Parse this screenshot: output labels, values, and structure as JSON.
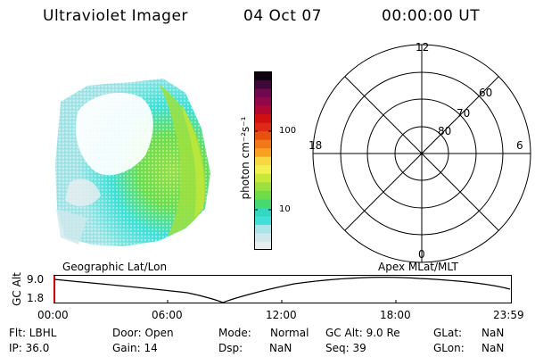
{
  "header": {
    "instrument": "Ultraviolet Imager",
    "date": "04 Oct 07",
    "time": "00:00:00 UT"
  },
  "colorbar": {
    "unit_label": "photon cm⁻²s⁻¹",
    "tick_100": "100",
    "tick_10": "10",
    "colors": [
      "#e8eef0",
      "#d0e8ec",
      "#a8e4e8",
      "#40e0d8",
      "#30d8c0",
      "#48d870",
      "#70dc48",
      "#9ce040",
      "#c8e838",
      "#f0f050",
      "#f8d840",
      "#f8a020",
      "#f07818",
      "#e85010",
      "#e02818",
      "#d01010",
      "#b00830",
      "#900848",
      "#700850",
      "#400838",
      "#100010"
    ]
  },
  "polar": {
    "label_top": "12",
    "label_bottom": "0",
    "label_left": "18",
    "label_right": "6",
    "ring_labels": [
      "60",
      "70",
      "80"
    ]
  },
  "timeline": {
    "left_label": "Geographic Lat/Lon",
    "right_label": "Apex  MLat/MLT",
    "axis_label": "GC Alt",
    "y_top": "9.0",
    "y_bottom": "1.8",
    "x_ticks": [
      "00:00",
      "06:00",
      "12:00",
      "18:00",
      "23:59"
    ]
  },
  "info": {
    "flt": "Flt: LBHL",
    "ip": "IP: 36.0",
    "door": "Door: Open",
    "gain": "Gain: 14",
    "mode_label": "Mode:",
    "mode_value": "Normal",
    "dsp_label": "Dsp:",
    "dsp_value": "NaN",
    "gcalt": "GC Alt: 9.0 Re",
    "seq": "Seq: 39",
    "glat_label": "GLat:",
    "glat_value": "NaN",
    "glon_label": "GLon:",
    "glon_value": "NaN"
  }
}
